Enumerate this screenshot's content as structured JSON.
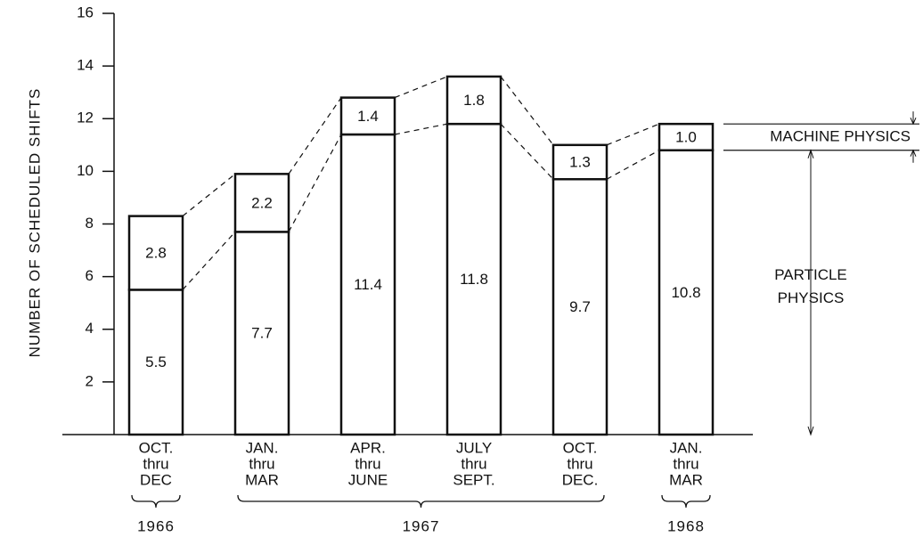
{
  "chart_data": {
    "type": "stacked-bar",
    "y_label": "NUMBER OF SCHEDULED SHIFTS",
    "categories": [
      [
        "OCT.",
        "thru",
        "DEC"
      ],
      [
        "JAN.",
        "thru",
        "MAR"
      ],
      [
        "APR.",
        "thru",
        "JUNE"
      ],
      [
        "JULY",
        "thru",
        "SEPT."
      ],
      [
        "OCT.",
        "thru",
        "DEC."
      ],
      [
        "JAN.",
        "thru",
        "MAR"
      ]
    ],
    "years": [
      "1966",
      "1967",
      "1967",
      "1967",
      "1967",
      "1968"
    ],
    "series": [
      {
        "name": "PARTICLE PHYSICS",
        "color": "#ffffff",
        "values": [
          5.5,
          7.7,
          11.4,
          11.8,
          9.7,
          10.8
        ]
      },
      {
        "name": "MACHINE PHYSICS",
        "color": "#ffffff",
        "values": [
          2.8,
          2.2,
          1.4,
          1.8,
          1.3,
          1.0
        ],
        "value_labels": [
          "2.8",
          "2.2",
          "1.4",
          "1.8",
          "1.3",
          "1.0"
        ]
      }
    ],
    "ylim": [
      0,
      16
    ],
    "yticks": [
      2,
      4,
      6,
      8,
      10,
      12,
      14,
      16
    ],
    "grid": false
  }
}
